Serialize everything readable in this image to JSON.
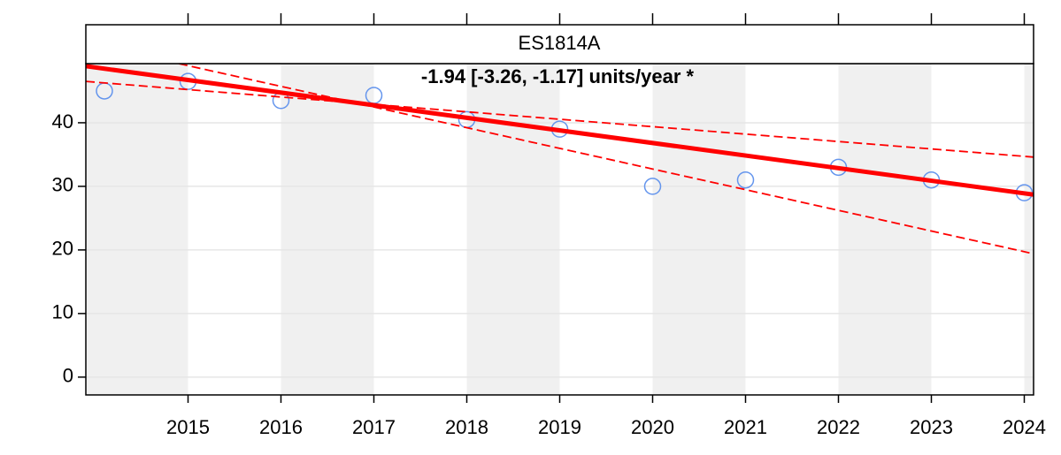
{
  "chart_data": {
    "type": "scatter",
    "title": "ES1814A",
    "annotation": "-1.94 [-3.26, -1.17] units/year *",
    "annotation_color": "#006400",
    "xlim": [
      2013.9,
      2024.1
    ],
    "xticks": [
      2015,
      2016,
      2017,
      2018,
      2019,
      2020,
      2021,
      2022,
      2023,
      2024
    ],
    "ylim": [
      -2.8,
      49.3
    ],
    "yticks": [
      0,
      10,
      20,
      30,
      40
    ],
    "grid": true,
    "series": [
      {
        "style": "points",
        "color": "#6495ed",
        "x": [
          2014.1,
          2015,
          2016,
          2017,
          2018,
          2019,
          2020,
          2021,
          2022,
          2023,
          2024
        ],
        "values": [
          45,
          46.5,
          43.5,
          44.3,
          40.5,
          39,
          30,
          31,
          33,
          31,
          29
        ]
      },
      {
        "style": "line",
        "color": "#ff0000",
        "x": [
          2013.9,
          2024.1
        ],
        "values": [
          48.9,
          28.7
        ]
      },
      {
        "style": "dashed",
        "color": "#ff0000",
        "x": [
          2013.9,
          2024.1
        ],
        "values": [
          46.5,
          34.6
        ]
      },
      {
        "style": "dashed",
        "color": "#ff0000",
        "x": [
          2014.9,
          2024.1
        ],
        "values": [
          49.3,
          19.4
        ]
      }
    ]
  }
}
